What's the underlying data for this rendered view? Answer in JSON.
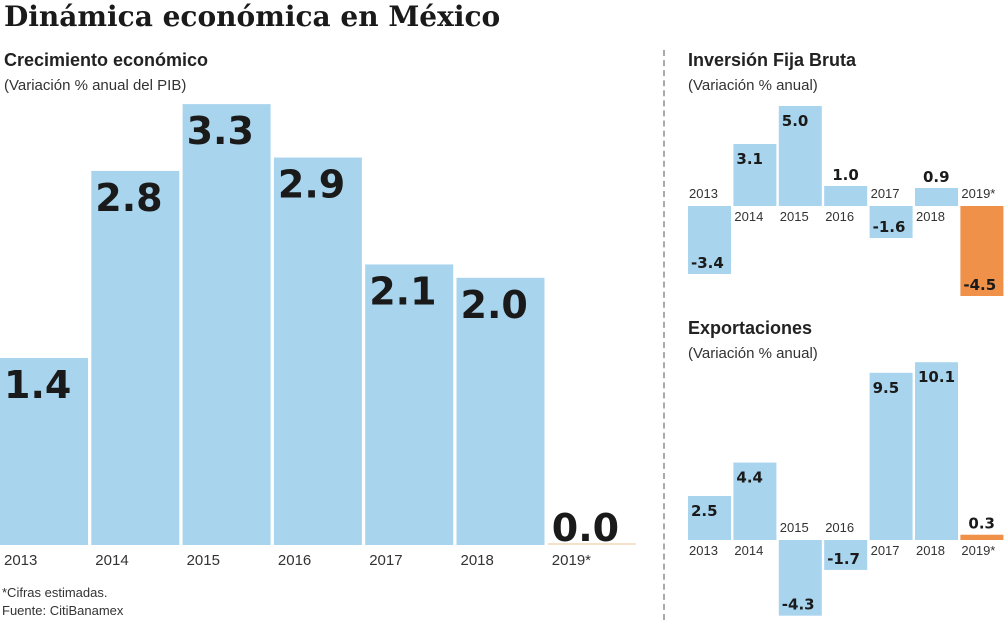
{
  "title": "Dinámica económica en México",
  "footnote": "*Cifras estimadas.",
  "source": "Fuente: CitiBanamex",
  "colors": {
    "bar": "#a8d4ee",
    "highlight": "#f0914a"
  },
  "chart_data": [
    {
      "type": "bar",
      "title": "Crecimiento económico",
      "subtitle": "(Variación % anual del PIB)",
      "categories": [
        "2013",
        "2014",
        "2015",
        "2016",
        "2017",
        "2018",
        "2019*"
      ],
      "values": [
        1.4,
        2.8,
        3.3,
        2.9,
        2.1,
        2.0,
        0.0
      ],
      "labels": [
        "1.4",
        "2.8",
        "3.3",
        "2.9",
        "2.1",
        "2.0",
        "0.0"
      ],
      "highlight_index": 6,
      "grid": false
    },
    {
      "type": "bar",
      "title": "Inversión Fija Bruta",
      "subtitle": "(Variación % anual)",
      "categories": [
        "2013",
        "2014",
        "2015",
        "2016",
        "2017",
        "2018",
        "2019*"
      ],
      "values": [
        -3.4,
        3.1,
        5.0,
        1.0,
        -1.6,
        0.9,
        -4.5
      ],
      "labels": [
        "-3.4",
        "3.1",
        "5.0",
        "1.0",
        "-1.6",
        "0.9",
        "-4.5"
      ],
      "highlight_index": 6,
      "grid": false
    },
    {
      "type": "bar",
      "title": "Exportaciones",
      "subtitle": "(Variación % anual)",
      "categories": [
        "2013",
        "2014",
        "2015",
        "2016",
        "2017",
        "2018",
        "2019*"
      ],
      "values": [
        2.5,
        4.4,
        -4.3,
        -1.7,
        9.5,
        10.1,
        0.3
      ],
      "labels": [
        "2.5",
        "4.4",
        "-4.3",
        "-1.7",
        "9.5",
        "10.1",
        "0.3"
      ],
      "highlight_index": 6,
      "grid": false
    }
  ]
}
